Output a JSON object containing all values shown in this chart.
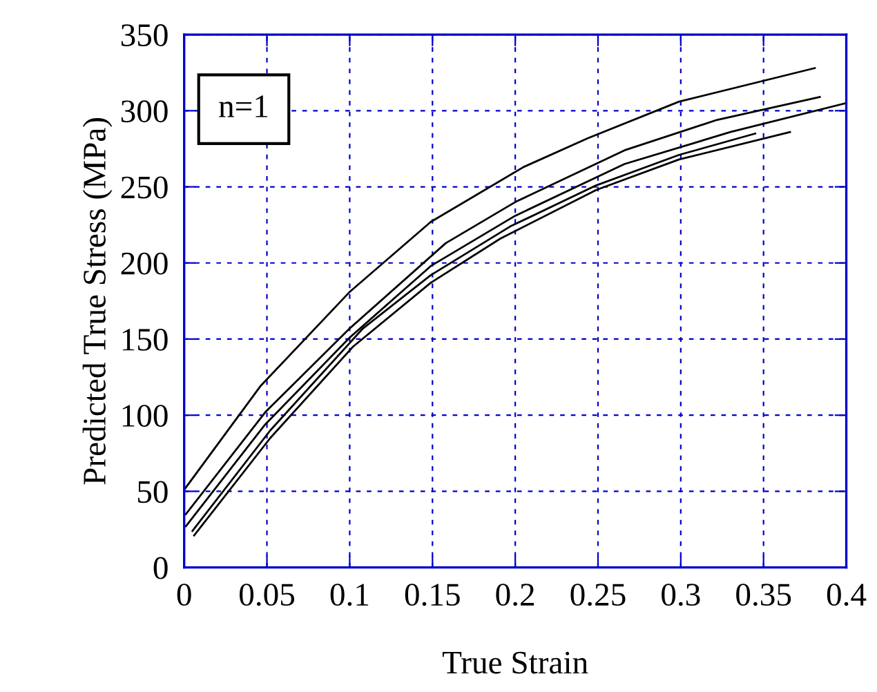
{
  "chart_data": {
    "type": "line",
    "xlabel": "True Strain",
    "ylabel": "Predicted True Stress (MPa)",
    "annotations": [
      "n=1"
    ],
    "xlim": [
      0,
      0.4
    ],
    "xticks": [
      0,
      0.05,
      0.1,
      0.15,
      0.2,
      0.25,
      0.3,
      0.35,
      0.4
    ],
    "ylim": [
      0,
      350
    ],
    "yticks": [
      0,
      50,
      100,
      150,
      200,
      250,
      300,
      350
    ],
    "grid": true,
    "marker": "none",
    "line_style": "solid",
    "series": [
      {
        "color": "#000000",
        "x": [
          0,
          0.046,
          0.1,
          0.149,
          0.205,
          0.244,
          0.299,
          0.381
        ],
        "values": [
          51,
          119,
          181,
          227,
          263,
          282,
          306,
          328
        ]
      },
      {
        "color": "#000000",
        "x": [
          0.001,
          0.049,
          0.1,
          0.158,
          0.2,
          0.266,
          0.322,
          0.384
        ],
        "values": [
          35,
          102,
          157,
          213,
          240,
          274,
          294,
          309
        ]
      },
      {
        "color": "#000000",
        "x": [
          0.001,
          0.049,
          0.1,
          0.149,
          0.2,
          0.266,
          0.33,
          0.4
        ],
        "values": [
          27,
          94,
          151,
          198,
          231,
          265,
          286,
          305
        ]
      },
      {
        "color": "#000000",
        "x": [
          0.005,
          0.052,
          0.108,
          0.149,
          0.197,
          0.249,
          0.299,
          0.345
        ],
        "values": [
          24,
          90,
          157,
          192,
          224,
          251,
          271,
          285
        ]
      },
      {
        "color": "#000000",
        "x": [
          0.006,
          0.052,
          0.102,
          0.149,
          0.191,
          0.249,
          0.299,
          0.366
        ],
        "values": [
          21,
          85,
          145,
          187,
          216,
          248,
          268,
          286
        ]
      }
    ]
  }
}
